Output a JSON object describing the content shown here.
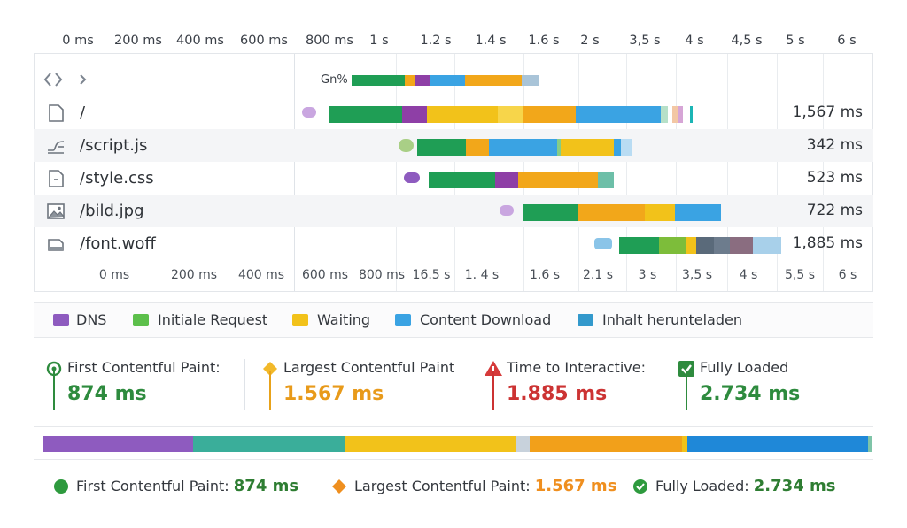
{
  "axis_top": [
    "0 ms",
    "200 ms",
    "400 ms",
    "600 ms",
    "800 ms",
    "1 s",
    "1.2 s",
    "1.4 s",
    "1.6 s",
    "2 s",
    "3,5 s",
    "4 s",
    "4,5 s",
    "5 s",
    "6 s"
  ],
  "axis_bottom": [
    "0 ms",
    "200 ms",
    "400 ms",
    "600 ms",
    "800 ms",
    "16.5 s",
    "1. 4 s",
    "1.6 s",
    "2.1 s",
    "3 s",
    "3,5 s",
    "4 s",
    "5,5 s",
    "6 s"
  ],
  "header_row": {
    "label": "Gn%"
  },
  "requests": [
    {
      "name": "/",
      "icon": "document-icon",
      "time": "1,567 ms"
    },
    {
      "name": "/script.js",
      "icon": "script-icon",
      "time": "342 ms"
    },
    {
      "name": "/style.css",
      "icon": "stylesheet-icon",
      "time": "523 ms"
    },
    {
      "name": "/bild.jpg",
      "icon": "image-icon",
      "time": "722 ms"
    },
    {
      "name": "/font.woff",
      "icon": "font-icon",
      "time": "1,885 ms"
    }
  ],
  "legend": [
    {
      "label": "DNS",
      "color": "#8e5bbf"
    },
    {
      "label": "Initiale Request",
      "color": "#5cbf4b"
    },
    {
      "label": "Waiting",
      "color": "#f2c21a"
    },
    {
      "label": "Content Download",
      "color": "#3aa3e3"
    },
    {
      "label": "Inhalt herunteladen",
      "color": "#3399cc"
    }
  ],
  "metrics": [
    {
      "label": "First Contentful Paint:",
      "value": "874 ms",
      "color": "#2e8b3e",
      "icon": "circle-dot-icon"
    },
    {
      "label": "Largest Contentful Paint",
      "value": "1.567 ms",
      "color": "#e89a1a",
      "icon": "diamond-icon"
    },
    {
      "label": "Time to Interactive:",
      "value": "1.885 ms",
      "color": "#cc3333",
      "icon": "warning-icon"
    },
    {
      "label": "Fully Loaded",
      "value": "2.734 ms",
      "color": "#2e8b3e",
      "icon": "checkbox-icon"
    }
  ],
  "summary": [
    {
      "label": "First Contentful Paint:",
      "value": "874 ms",
      "color": "#2e7d32",
      "icon": "green-dot-icon"
    },
    {
      "label": "Largest Contentful Paint:",
      "value": "1.567 ms",
      "color": "#ef8f1f",
      "icon": "orange-diamond-icon"
    },
    {
      "label": "Fully Loaded:",
      "value": "2.734 ms",
      "color": "#2e7d32",
      "icon": "check-circle-icon"
    }
  ]
}
